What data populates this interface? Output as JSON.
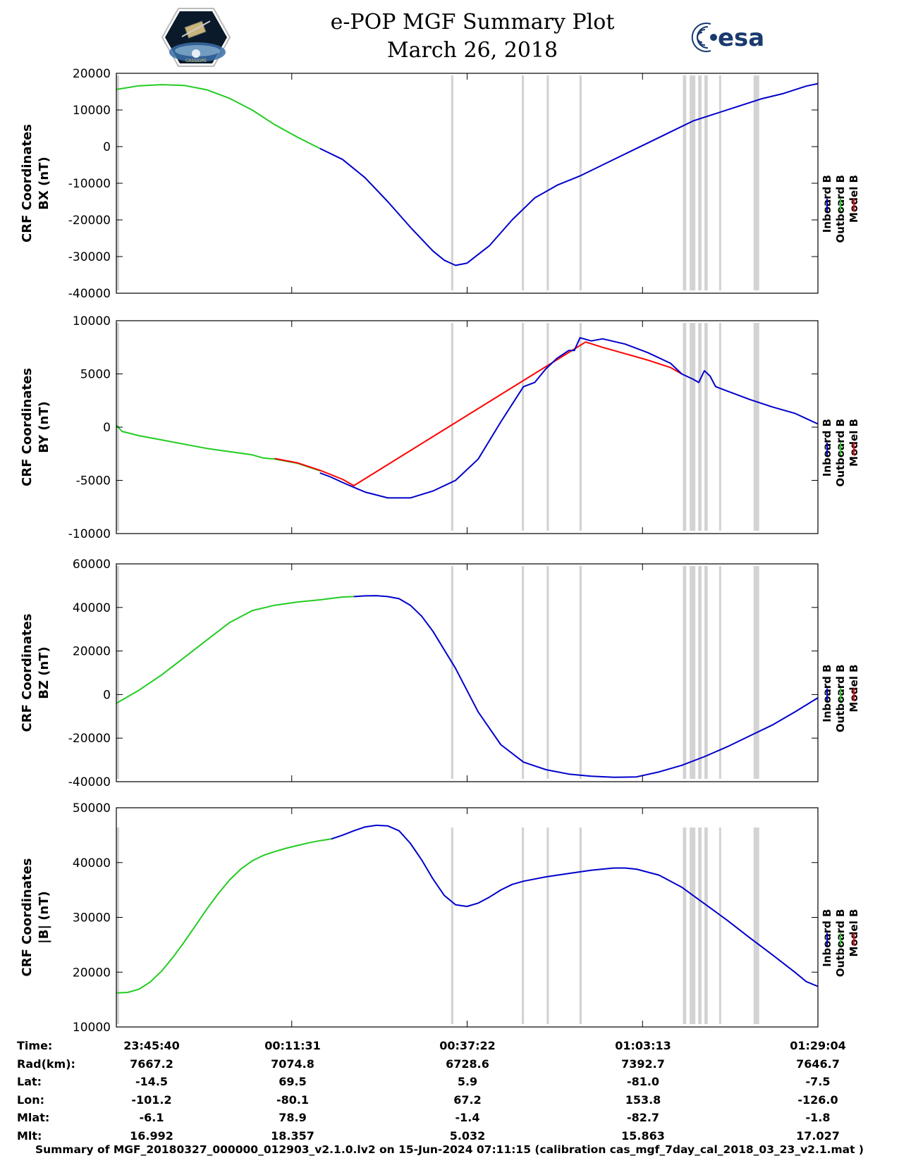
{
  "header": {
    "title_line1": "e-POP MGF Summary Plot",
    "title_line2": "March 26, 2018",
    "logo_left": "cassiope-mission-logo",
    "logo_right": "esa-logo",
    "esa_logo_text": "esa"
  },
  "colors": {
    "inboard": "#0000cc",
    "outboard": "#22cc22",
    "model": "#ff0000",
    "gap": "#d3d3d3"
  },
  "chart_data": [
    {
      "type": "line",
      "ylabel_line1": "CRF Coordinates",
      "ylabel_line2": "BX (nT)",
      "ylim": [
        -40000,
        20000
      ],
      "yticks": [
        20000,
        10000,
        0,
        -10000,
        -20000,
        -30000,
        -40000
      ],
      "xlim": [
        0,
        6204
      ],
      "xtick_positions": [
        0,
        1551,
        3102,
        4653,
        6204
      ],
      "legend": [
        "Inboard B",
        "Outboard B",
        "Model B"
      ],
      "series": [
        {
          "name": "Outboard B",
          "color_key": "outboard",
          "x": [
            0,
            200,
            400,
            600,
            800,
            1000,
            1200,
            1400,
            1600,
            1800
          ],
          "y": [
            15600,
            16600,
            16900,
            16700,
            15500,
            13200,
            10000,
            6000,
            2600,
            -500
          ]
        },
        {
          "name": "Inboard B",
          "color_key": "inboard",
          "x": [
            1800,
            2000,
            2200,
            2400,
            2600,
            2800,
            2900,
            3000,
            3100,
            3300,
            3500,
            3700,
            3900,
            4100,
            4300,
            4500,
            4700,
            4900,
            5100,
            5300,
            5500,
            5700,
            5900,
            6100,
            6204
          ],
          "y": [
            -500,
            -3500,
            -8500,
            -15000,
            -22000,
            -28500,
            -31000,
            -32400,
            -31800,
            -27000,
            -20000,
            -14000,
            -10500,
            -8000,
            -5000,
            -2000,
            1000,
            4000,
            7000,
            9000,
            11000,
            13000,
            14500,
            16500,
            17200
          ]
        }
      ]
    },
    {
      "type": "line",
      "ylabel_line1": "CRF Coordinates",
      "ylabel_line2": "BY (nT)",
      "ylim": [
        -10000,
        10000
      ],
      "yticks": [
        10000,
        5000,
        0,
        -5000,
        -10000
      ],
      "xlim": [
        0,
        6204
      ],
      "xtick_positions": [
        0,
        1551,
        3102,
        4653,
        6204
      ],
      "legend": [
        "Inboard B",
        "Outboard B",
        "Model B"
      ],
      "series": [
        {
          "name": "Outboard B",
          "color_key": "outboard",
          "x": [
            0,
            50,
            200,
            400,
            600,
            800,
            1000,
            1200,
            1300,
            1400,
            1600,
            1800,
            1800
          ],
          "y": [
            200,
            -400,
            -800,
            -1200,
            -1600,
            -2000,
            -2300,
            -2600,
            -2900,
            -3000,
            -3400,
            -4100,
            -4100
          ]
        },
        {
          "name": "Model B",
          "color_key": "model",
          "x": [
            1400,
            1600,
            1800,
            2000,
            2100,
            4150,
            4300,
            4500,
            4700,
            4900,
            5000
          ],
          "y": [
            -2950,
            -3350,
            -4050,
            -4900,
            -5500,
            8000,
            7500,
            6900,
            6300,
            5600,
            5000
          ]
        },
        {
          "name": "Inboard B",
          "color_key": "inboard",
          "x": [
            1800,
            1900,
            2000,
            2200,
            2400,
            2600,
            2800,
            3000,
            3200,
            3400,
            3600,
            3700,
            3800,
            3900,
            4000,
            4050,
            4100,
            4200,
            4300,
            4500,
            4700,
            4900,
            5000,
            5100,
            5150,
            5200,
            5250,
            5300,
            5400,
            5600,
            5800,
            6000,
            6204
          ],
          "y": [
            -4300,
            -4700,
            -5200,
            -6100,
            -6650,
            -6650,
            -6000,
            -5000,
            -3000,
            500,
            3800,
            4200,
            5500,
            6500,
            7200,
            7200,
            8400,
            8100,
            8300,
            7800,
            7000,
            6000,
            5000,
            4500,
            4200,
            5300,
            4800,
            3800,
            3400,
            2600,
            1900,
            1300,
            300
          ]
        }
      ]
    },
    {
      "type": "line",
      "ylabel_line1": "CRF Coordinates",
      "ylabel_line2": "BZ (nT)",
      "ylim": [
        -40000,
        60000
      ],
      "yticks": [
        60000,
        40000,
        20000,
        0,
        -20000,
        -40000
      ],
      "xlim": [
        0,
        6204
      ],
      "xtick_positions": [
        0,
        1551,
        3102,
        4653,
        6204
      ],
      "legend": [
        "Inboard B",
        "Outboard B",
        "Model B"
      ],
      "series": [
        {
          "name": "Outboard B",
          "color_key": "outboard",
          "x": [
            0,
            200,
            400,
            600,
            800,
            1000,
            1200,
            1400,
            1600,
            1800,
            2000,
            2100
          ],
          "y": [
            -4000,
            2000,
            9000,
            17000,
            25000,
            33000,
            38500,
            41000,
            42500,
            43500,
            44800,
            45000
          ]
        },
        {
          "name": "Inboard B",
          "color_key": "inboard",
          "x": [
            2100,
            2200,
            2300,
            2400,
            2500,
            2600,
            2700,
            2800,
            3000,
            3200,
            3400,
            3600,
            3800,
            4000,
            4200,
            4400,
            4600,
            4800,
            5000,
            5200,
            5400,
            5600,
            5800,
            6000,
            6204
          ],
          "y": [
            45000,
            45300,
            45400,
            45000,
            44000,
            41000,
            36000,
            29000,
            12000,
            -8000,
            -23000,
            -31000,
            -34500,
            -36500,
            -37500,
            -38000,
            -37800,
            -35500,
            -32500,
            -28500,
            -24000,
            -19000,
            -14000,
            -8000,
            -1500
          ]
        }
      ]
    },
    {
      "type": "line",
      "ylabel_line1": "CRF Coordinates",
      "ylabel_line2": "|B| (nT)",
      "ylim": [
        10000,
        50000
      ],
      "yticks": [
        50000,
        40000,
        30000,
        20000,
        10000
      ],
      "xlim": [
        0,
        6204
      ],
      "xtick_positions": [
        0,
        1551,
        3102,
        4653,
        6204
      ],
      "legend": [
        "Inboard B",
        "Outboard B",
        "Model B"
      ],
      "series": [
        {
          "name": "Outboard B",
          "color_key": "outboard",
          "x": [
            0,
            100,
            200,
            300,
            400,
            500,
            600,
            700,
            800,
            900,
            1000,
            1100,
            1200,
            1300,
            1400,
            1500,
            1600,
            1700,
            1800,
            1900
          ],
          "y": [
            16200,
            16300,
            16900,
            18200,
            20200,
            22700,
            25500,
            28500,
            31500,
            34300,
            36800,
            38800,
            40300,
            41300,
            42000,
            42600,
            43100,
            43600,
            44000,
            44300
          ]
        },
        {
          "name": "Inboard B",
          "color_key": "inboard",
          "x": [
            1900,
            2000,
            2100,
            2200,
            2300,
            2400,
            2500,
            2600,
            2700,
            2800,
            2900,
            3000,
            3100,
            3200,
            3300,
            3400,
            3500,
            3600,
            3800,
            4000,
            4200,
            4400,
            4500,
            4600,
            4800,
            5000,
            5200,
            5400,
            5600,
            5800,
            6000,
            6100,
            6204
          ],
          "y": [
            44300,
            45000,
            45800,
            46500,
            46800,
            46700,
            45800,
            43500,
            40500,
            37000,
            34000,
            32300,
            32000,
            32600,
            33700,
            35000,
            36000,
            36600,
            37400,
            38000,
            38600,
            39000,
            39000,
            38800,
            37700,
            35500,
            32500,
            29500,
            26300,
            23200,
            20000,
            18300,
            17400
          ]
        }
      ]
    }
  ],
  "gaps": [
    {
      "start": 0,
      "end": 25
    },
    {
      "start": 2960,
      "end": 2980
    },
    {
      "start": 3585,
      "end": 3605
    },
    {
      "start": 3805,
      "end": 3825
    },
    {
      "start": 4095,
      "end": 4115
    },
    {
      "start": 5010,
      "end": 5040
    },
    {
      "start": 5070,
      "end": 5120
    },
    {
      "start": 5145,
      "end": 5175
    },
    {
      "start": 5200,
      "end": 5230
    },
    {
      "start": 5330,
      "end": 5345
    },
    {
      "start": 5635,
      "end": 5685
    }
  ],
  "orbit_table": {
    "labels": [
      "Time:",
      "Rad(km):",
      "Lat:",
      "Lon:",
      "Mlat:",
      "Mlt:"
    ],
    "columns": [
      [
        "23:45:40",
        "7667.2",
        "-14.5",
        "-101.2",
        "-6.1",
        "16.992"
      ],
      [
        "00:11:31",
        "7074.8",
        "69.5",
        "-80.1",
        "78.9",
        "18.357"
      ],
      [
        "00:37:22",
        "6728.6",
        "5.9",
        "67.2",
        "-1.4",
        "5.032"
      ],
      [
        "01:03:13",
        "7392.7",
        "-81.0",
        "153.8",
        "-82.7",
        "15.863"
      ],
      [
        "01:29:04",
        "7646.7",
        "-7.5",
        "-126.0",
        "-1.8",
        "17.027"
      ]
    ]
  },
  "footer": "Summary of MGF_20180327_000000_012903_v2.1.0.lv2 on 15-Jun-2024 07:11:15 (calibration cas_mgf_7day_cal_2018_03_23_v2.1.mat )"
}
